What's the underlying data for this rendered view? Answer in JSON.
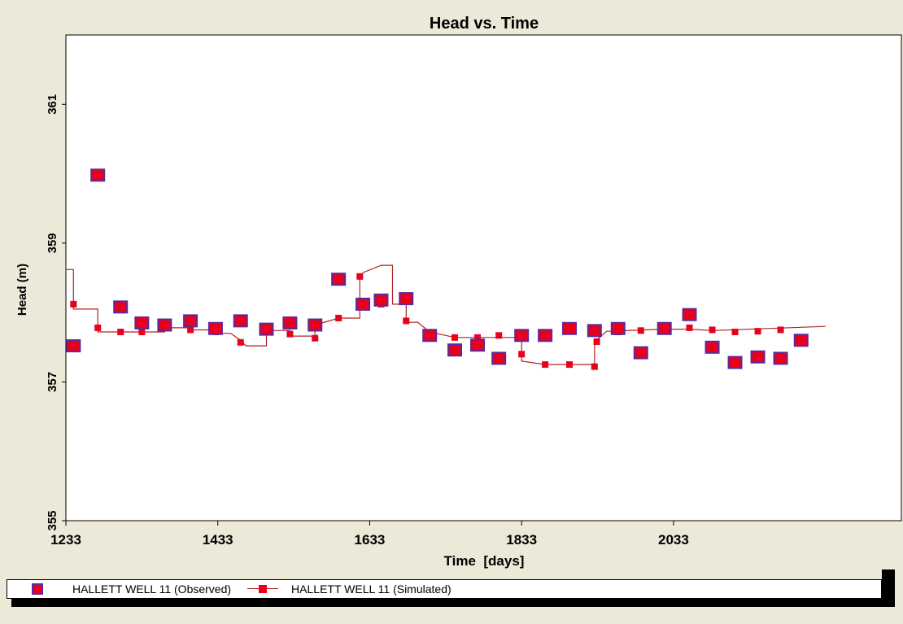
{
  "chart_data": {
    "type": "line",
    "title": "Head vs. Time",
    "xlabel": "Time  [days]",
    "ylabel": "Head (m)",
    "xlim": [
      1233,
      2333
    ],
    "ylim": [
      355,
      362
    ],
    "xticks": [
      1233,
      1433,
      1633,
      1833,
      2033
    ],
    "yticks": [
      355,
      357,
      359,
      361
    ],
    "grid": false,
    "legend_position": "bottom",
    "series": [
      {
        "name": "HALLETT WELL 11 (Observed)",
        "style": "markers",
        "color": "#e8001c",
        "edge_color": "#5a2aa0",
        "points": [
          [
            1243,
            357.52
          ],
          [
            1275,
            359.98
          ],
          [
            1305,
            358.08
          ],
          [
            1333,
            357.85
          ],
          [
            1363,
            357.82
          ],
          [
            1397,
            357.88
          ],
          [
            1430,
            357.77
          ],
          [
            1463,
            357.88
          ],
          [
            1497,
            357.76
          ],
          [
            1528,
            357.85
          ],
          [
            1561,
            357.82
          ],
          [
            1592,
            358.48
          ],
          [
            1624,
            358.12
          ],
          [
            1648,
            358.18
          ],
          [
            1681,
            358.2
          ],
          [
            1712,
            357.67
          ],
          [
            1745,
            357.46
          ],
          [
            1775,
            357.53
          ],
          [
            1803,
            357.34
          ],
          [
            1833,
            357.67
          ],
          [
            1864,
            357.67
          ],
          [
            1896,
            357.77
          ],
          [
            1929,
            357.74
          ],
          [
            1960,
            357.77
          ],
          [
            1990,
            357.42
          ],
          [
            2021,
            357.77
          ],
          [
            2054,
            357.97
          ],
          [
            2084,
            357.5
          ],
          [
            2114,
            357.28
          ],
          [
            2144,
            357.36
          ],
          [
            2174,
            357.34
          ],
          [
            2201,
            357.6
          ]
        ]
      },
      {
        "name": "HALLETT WELL 11 (Simulated)",
        "style": "step-line-markers",
        "color": "#e8001c",
        "line_color": "#b22222",
        "points": [
          [
            1243,
            358.12
          ],
          [
            1275,
            357.78
          ],
          [
            1305,
            357.72
          ],
          [
            1333,
            357.72
          ],
          [
            1363,
            357.78
          ],
          [
            1397,
            357.75
          ],
          [
            1430,
            357.72
          ],
          [
            1463,
            357.57
          ],
          [
            1497,
            357.74
          ],
          [
            1528,
            357.69
          ],
          [
            1561,
            357.63
          ],
          [
            1592,
            357.92
          ],
          [
            1620,
            358.52
          ],
          [
            1648,
            358.12
          ],
          [
            1681,
            357.88
          ],
          [
            1712,
            357.67
          ],
          [
            1745,
            357.64
          ],
          [
            1775,
            357.64
          ],
          [
            1803,
            357.67
          ],
          [
            1833,
            357.4
          ],
          [
            1864,
            357.25
          ],
          [
            1896,
            357.25
          ],
          [
            1929,
            357.22
          ],
          [
            1932,
            357.58
          ],
          [
            1960,
            357.72
          ],
          [
            1990,
            357.74
          ],
          [
            2021,
            357.77
          ],
          [
            2054,
            357.78
          ],
          [
            2084,
            357.75
          ],
          [
            2114,
            357.72
          ],
          [
            2144,
            357.73
          ],
          [
            2174,
            357.75
          ]
        ],
        "step_path": [
          [
            1233,
            358.62
          ],
          [
            1243,
            358.62
          ],
          [
            1243,
            358.05
          ],
          [
            1275,
            358.05
          ],
          [
            1275,
            357.72
          ],
          [
            1363,
            357.72
          ],
          [
            1363,
            357.78
          ],
          [
            1397,
            357.78
          ],
          [
            1397,
            357.75
          ],
          [
            1430,
            357.75
          ],
          [
            1430,
            357.7
          ],
          [
            1450,
            357.7
          ],
          [
            1463,
            357.6
          ],
          [
            1470,
            357.52
          ],
          [
            1497,
            357.52
          ],
          [
            1497,
            357.74
          ],
          [
            1528,
            357.74
          ],
          [
            1528,
            357.66
          ],
          [
            1561,
            357.66
          ],
          [
            1561,
            357.82
          ],
          [
            1592,
            357.92
          ],
          [
            1620,
            357.92
          ],
          [
            1620,
            358.52
          ],
          [
            1625,
            358.58
          ],
          [
            1648,
            358.68
          ],
          [
            1663,
            358.68
          ],
          [
            1663,
            358.12
          ],
          [
            1681,
            358.12
          ],
          [
            1681,
            357.86
          ],
          [
            1696,
            357.86
          ],
          [
            1712,
            357.72
          ],
          [
            1745,
            357.64
          ],
          [
            1833,
            357.64
          ],
          [
            1833,
            357.3
          ],
          [
            1864,
            357.25
          ],
          [
            1929,
            357.25
          ],
          [
            1929,
            357.58
          ],
          [
            1945,
            357.73
          ],
          [
            2021,
            357.76
          ],
          [
            2054,
            357.76
          ],
          [
            2084,
            357.74
          ],
          [
            2233,
            357.8
          ]
        ]
      }
    ]
  }
}
